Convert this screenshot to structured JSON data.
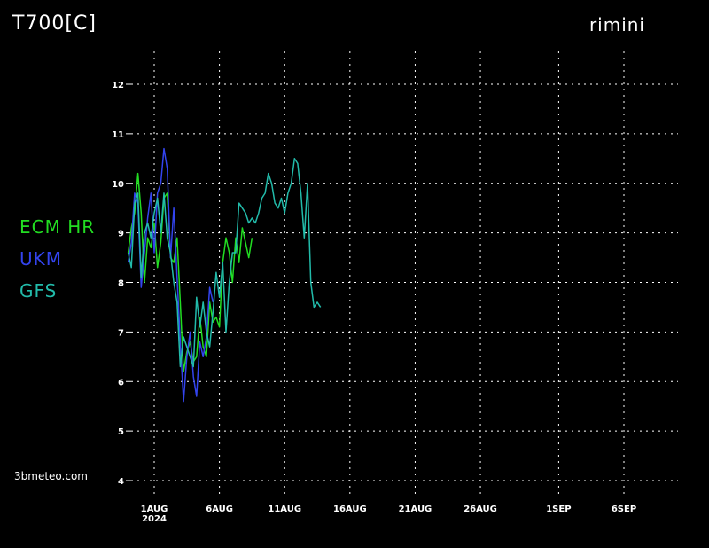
{
  "header": {
    "title": "T700[C]",
    "location": "rimini"
  },
  "credit": "3bmeteo.com",
  "chart_data": {
    "type": "line",
    "title": "T700[C]",
    "xlabel": "",
    "ylabel": "",
    "ylim": [
      4,
      12
    ],
    "xlim": [
      "2024-07-29",
      "2024-09-08"
    ],
    "y_ticks": [
      4,
      5,
      6,
      7,
      8,
      9,
      10,
      11,
      12
    ],
    "x_ticks": [
      {
        "date": "2024-08-01",
        "label": "1AUG",
        "sublabel": "2024"
      },
      {
        "date": "2024-08-06",
        "label": "6AUG"
      },
      {
        "date": "2024-08-11",
        "label": "11AUG"
      },
      {
        "date": "2024-08-16",
        "label": "16AUG"
      },
      {
        "date": "2024-08-21",
        "label": "21AUG"
      },
      {
        "date": "2024-08-26",
        "label": "26AUG"
      },
      {
        "date": "2024-09-01",
        "label": "1SEP"
      },
      {
        "date": "2024-09-06",
        "label": "6SEP"
      }
    ],
    "grid": true,
    "series": [
      {
        "name": "ECM  HR",
        "color": "#22dd22",
        "points": [
          [
            "2024-07-30T00:00",
            8.6
          ],
          [
            "2024-07-30T06:00",
            9.1
          ],
          [
            "2024-07-30T12:00",
            9.4
          ],
          [
            "2024-07-30T18:00",
            10.2
          ],
          [
            "2024-07-31T00:00",
            9.4
          ],
          [
            "2024-07-31T06:00",
            8.0
          ],
          [
            "2024-07-31T12:00",
            8.9
          ],
          [
            "2024-07-31T18:00",
            8.7
          ],
          [
            "2024-08-01T00:00",
            9.2
          ],
          [
            "2024-08-01T06:00",
            8.3
          ],
          [
            "2024-08-01T12:00",
            8.8
          ],
          [
            "2024-08-01T18:00",
            9.7
          ],
          [
            "2024-08-02T00:00",
            9.8
          ],
          [
            "2024-08-02T06:00",
            8.5
          ],
          [
            "2024-08-02T12:00",
            8.4
          ],
          [
            "2024-08-02T18:00",
            8.9
          ],
          [
            "2024-08-03T00:00",
            7.6
          ],
          [
            "2024-08-03T06:00",
            6.2
          ],
          [
            "2024-08-03T12:00",
            6.6
          ],
          [
            "2024-08-03T18:00",
            6.8
          ],
          [
            "2024-08-04T00:00",
            6.4
          ],
          [
            "2024-08-04T06:00",
            6.5
          ],
          [
            "2024-08-04T12:00",
            7.3
          ],
          [
            "2024-08-04T18:00",
            6.7
          ],
          [
            "2024-08-05T00:00",
            6.5
          ],
          [
            "2024-08-05T06:00",
            7.6
          ],
          [
            "2024-08-05T12:00",
            7.2
          ],
          [
            "2024-08-05T18:00",
            7.3
          ],
          [
            "2024-08-06T00:00",
            7.1
          ],
          [
            "2024-08-06T06:00",
            8.4
          ],
          [
            "2024-08-06T12:00",
            8.9
          ],
          [
            "2024-08-06T18:00",
            8.6
          ],
          [
            "2024-08-07T00:00",
            8.0
          ],
          [
            "2024-08-07T06:00",
            8.9
          ],
          [
            "2024-08-07T12:00",
            8.4
          ],
          [
            "2024-08-07T18:00",
            9.1
          ],
          [
            "2024-08-08T00:00",
            8.8
          ],
          [
            "2024-08-08T06:00",
            8.5
          ],
          [
            "2024-08-08T12:00",
            8.9
          ]
        ]
      },
      {
        "name": "UKM",
        "color": "#3344ee",
        "points": [
          [
            "2024-07-30T00:00",
            8.4
          ],
          [
            "2024-07-30T06:00",
            8.8
          ],
          [
            "2024-07-30T12:00",
            9.8
          ],
          [
            "2024-07-30T18:00",
            9.6
          ],
          [
            "2024-07-31T00:00",
            7.9
          ],
          [
            "2024-07-31T06:00",
            8.6
          ],
          [
            "2024-07-31T12:00",
            9.3
          ],
          [
            "2024-07-31T18:00",
            9.8
          ],
          [
            "2024-08-01T00:00",
            8.6
          ],
          [
            "2024-08-01T06:00",
            9.8
          ],
          [
            "2024-08-01T12:00",
            10.0
          ],
          [
            "2024-08-01T18:00",
            10.7
          ],
          [
            "2024-08-02T00:00",
            10.3
          ],
          [
            "2024-08-02T06:00",
            8.5
          ],
          [
            "2024-08-02T12:00",
            9.5
          ],
          [
            "2024-08-02T18:00",
            8.1
          ],
          [
            "2024-08-03T00:00",
            6.8
          ],
          [
            "2024-08-03T06:00",
            5.6
          ],
          [
            "2024-08-03T12:00",
            6.5
          ],
          [
            "2024-08-03T18:00",
            7.0
          ],
          [
            "2024-08-04T00:00",
            6.1
          ],
          [
            "2024-08-04T06:00",
            5.7
          ],
          [
            "2024-08-04T12:00",
            6.8
          ],
          [
            "2024-08-04T18:00",
            6.5
          ],
          [
            "2024-08-05T00:00",
            6.9
          ],
          [
            "2024-08-05T06:00",
            7.9
          ],
          [
            "2024-08-05T12:00",
            7.6
          ]
        ]
      },
      {
        "name": "GFS",
        "color": "#22bbaa",
        "points": [
          [
            "2024-07-30T00:00",
            8.6
          ],
          [
            "2024-07-30T06:00",
            8.3
          ],
          [
            "2024-07-30T12:00",
            9.6
          ],
          [
            "2024-07-30T18:00",
            9.8
          ],
          [
            "2024-07-31T00:00",
            8.1
          ],
          [
            "2024-07-31T06:00",
            9.0
          ],
          [
            "2024-07-31T12:00",
            9.2
          ],
          [
            "2024-07-31T18:00",
            8.9
          ],
          [
            "2024-08-01T00:00",
            9.4
          ],
          [
            "2024-08-01T06:00",
            9.7
          ],
          [
            "2024-08-01T12:00",
            9.0
          ],
          [
            "2024-08-01T18:00",
            9.8
          ],
          [
            "2024-08-02T00:00",
            8.9
          ],
          [
            "2024-08-02T06:00",
            8.6
          ],
          [
            "2024-08-02T12:00",
            8.0
          ],
          [
            "2024-08-02T18:00",
            7.6
          ],
          [
            "2024-08-03T00:00",
            6.3
          ],
          [
            "2024-08-03T06:00",
            6.9
          ],
          [
            "2024-08-03T12:00",
            6.7
          ],
          [
            "2024-08-03T18:00",
            6.5
          ],
          [
            "2024-08-04T00:00",
            6.3
          ],
          [
            "2024-08-04T06:00",
            7.7
          ],
          [
            "2024-08-04T12:00",
            7.1
          ],
          [
            "2024-08-04T18:00",
            7.6
          ],
          [
            "2024-08-05T00:00",
            7.0
          ],
          [
            "2024-08-05T06:00",
            6.7
          ],
          [
            "2024-08-05T12:00",
            7.4
          ],
          [
            "2024-08-05T18:00",
            8.2
          ],
          [
            "2024-08-06T00:00",
            7.7
          ],
          [
            "2024-08-06T06:00",
            8.4
          ],
          [
            "2024-08-06T12:00",
            7.0
          ],
          [
            "2024-08-06T18:00",
            8.0
          ],
          [
            "2024-08-07T00:00",
            8.6
          ],
          [
            "2024-08-07T06:00",
            8.6
          ],
          [
            "2024-08-07T12:00",
            9.6
          ],
          [
            "2024-08-07T18:00",
            9.5
          ],
          [
            "2024-08-08T00:00",
            9.4
          ],
          [
            "2024-08-08T06:00",
            9.2
          ],
          [
            "2024-08-08T12:00",
            9.3
          ],
          [
            "2024-08-08T18:00",
            9.2
          ],
          [
            "2024-08-09T00:00",
            9.4
          ],
          [
            "2024-08-09T06:00",
            9.7
          ],
          [
            "2024-08-09T12:00",
            9.8
          ],
          [
            "2024-08-09T18:00",
            10.2
          ],
          [
            "2024-08-10T00:00",
            10.0
          ],
          [
            "2024-08-10T06:00",
            9.6
          ],
          [
            "2024-08-10T12:00",
            9.5
          ],
          [
            "2024-08-10T18:00",
            9.7
          ],
          [
            "2024-08-11T00:00",
            9.4
          ],
          [
            "2024-08-11T06:00",
            9.8
          ],
          [
            "2024-08-11T12:00",
            10.0
          ],
          [
            "2024-08-11T18:00",
            10.5
          ],
          [
            "2024-08-12T00:00",
            10.4
          ],
          [
            "2024-08-12T06:00",
            9.8
          ],
          [
            "2024-08-12T12:00",
            8.9
          ],
          [
            "2024-08-12T18:00",
            10.0
          ],
          [
            "2024-08-13T00:00",
            8.0
          ],
          [
            "2024-08-13T06:00",
            7.5
          ],
          [
            "2024-08-13T12:00",
            7.6
          ],
          [
            "2024-08-13T18:00",
            7.5
          ]
        ]
      }
    ]
  }
}
